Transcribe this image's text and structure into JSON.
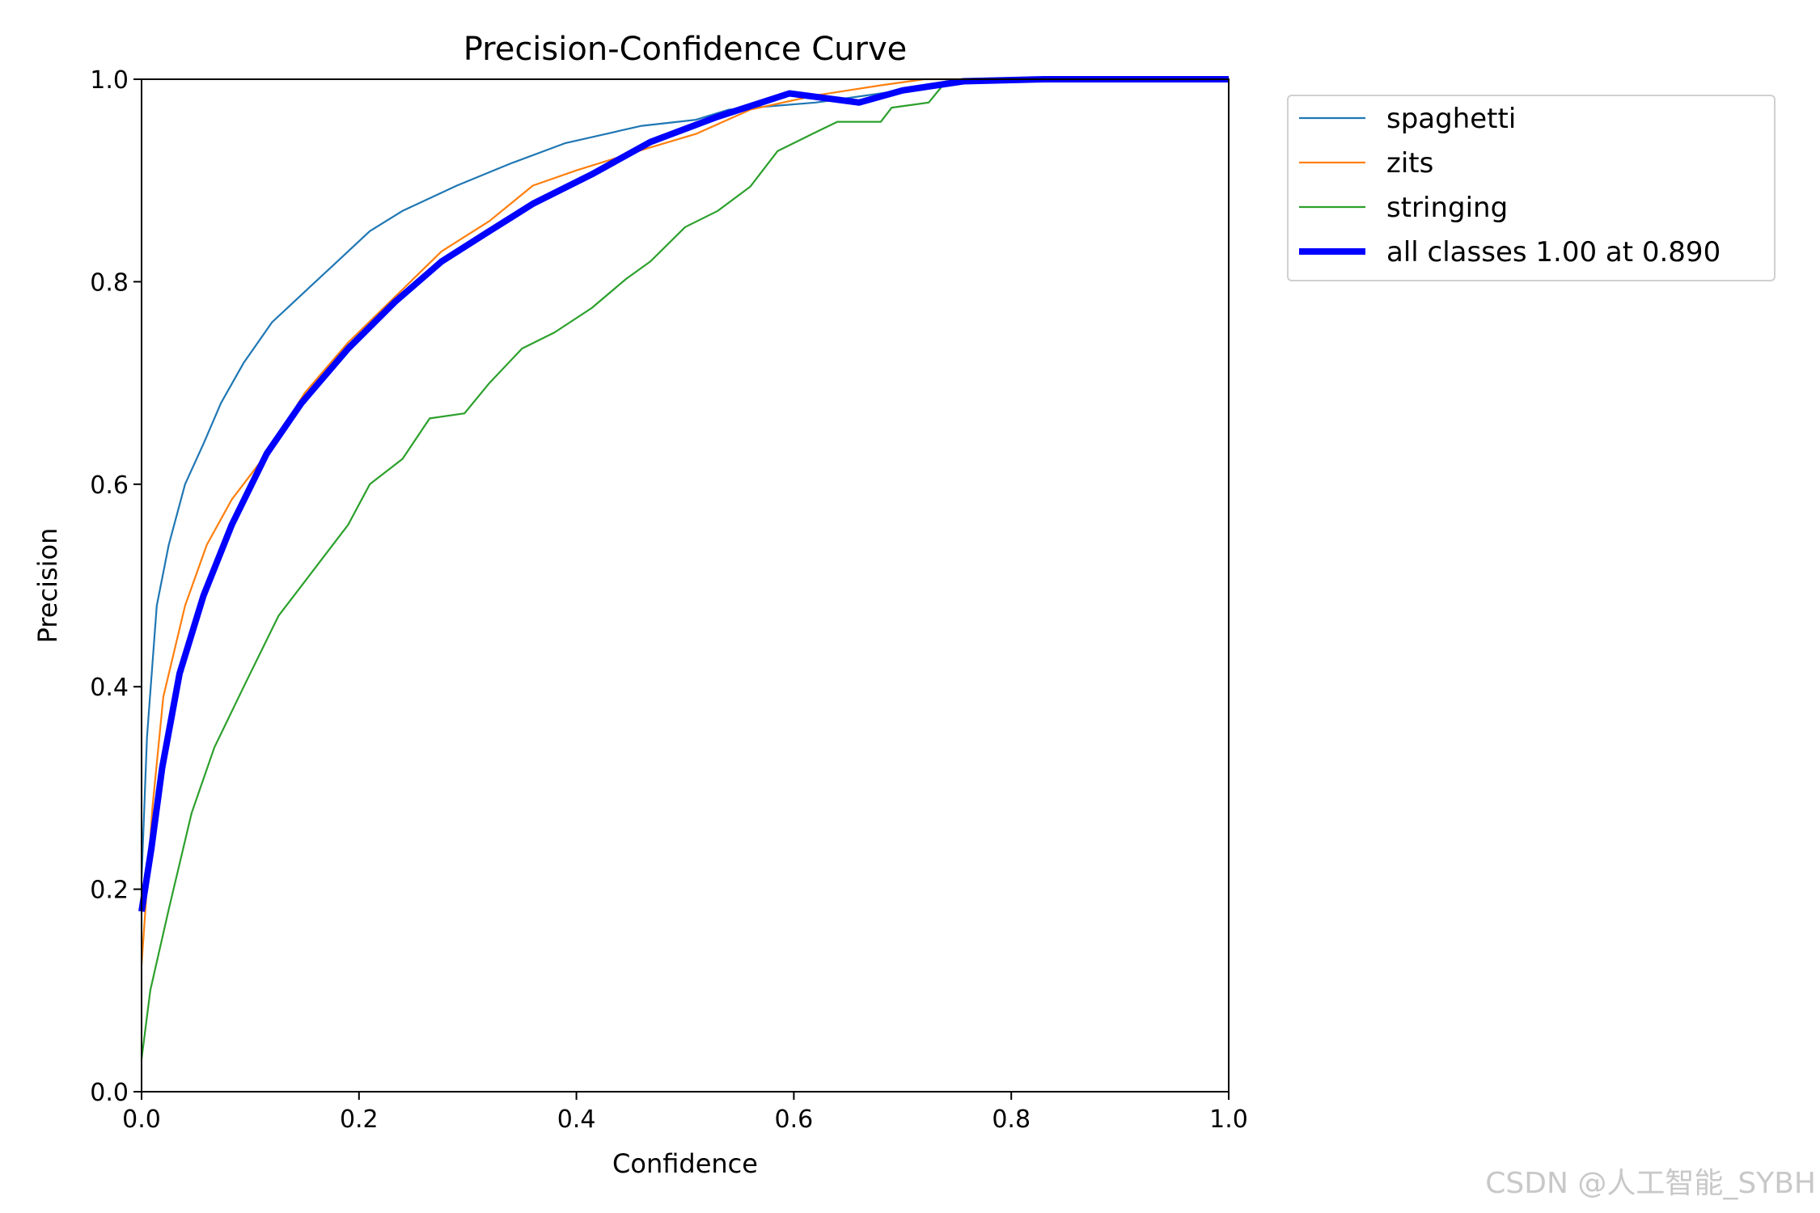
{
  "chart_data": {
    "type": "line",
    "title": "Precision-Confidence Curve",
    "xlabel": "Confidence",
    "ylabel": "Precision",
    "xlim": [
      0,
      1
    ],
    "ylim": [
      0,
      1
    ],
    "xticks": [
      "0.0",
      "0.2",
      "0.4",
      "0.6",
      "0.8",
      "1.0"
    ],
    "yticks": [
      "0.0",
      "0.2",
      "0.4",
      "0.6",
      "0.8",
      "1.0"
    ],
    "grid": false,
    "legend_position": "outside-top-right",
    "series": [
      {
        "name": "spaghetti",
        "color": "#1f77b4",
        "width": "thin",
        "points": [
          [
            0,
            0.21
          ],
          [
            0.005,
            0.35
          ],
          [
            0.014,
            0.48
          ],
          [
            0.025,
            0.54
          ],
          [
            0.04,
            0.6
          ],
          [
            0.057,
            0.64
          ],
          [
            0.073,
            0.68
          ],
          [
            0.094,
            0.72
          ],
          [
            0.12,
            0.76
          ],
          [
            0.15,
            0.79
          ],
          [
            0.18,
            0.82
          ],
          [
            0.21,
            0.85
          ],
          [
            0.24,
            0.87
          ],
          [
            0.29,
            0.895
          ],
          [
            0.34,
            0.917
          ],
          [
            0.39,
            0.937
          ],
          [
            0.46,
            0.954
          ],
          [
            0.51,
            0.96
          ],
          [
            0.54,
            0.97
          ],
          [
            0.62,
            0.977
          ],
          [
            0.68,
            0.986
          ],
          [
            0.75,
            0.998
          ],
          [
            1.0,
            1.0
          ]
        ]
      },
      {
        "name": "zits",
        "color": "#ff7f0e",
        "width": "thin",
        "points": [
          [
            0,
            0.125
          ],
          [
            0.01,
            0.28
          ],
          [
            0.02,
            0.39
          ],
          [
            0.04,
            0.48
          ],
          [
            0.06,
            0.54
          ],
          [
            0.083,
            0.585
          ],
          [
            0.115,
            0.63
          ],
          [
            0.15,
            0.69
          ],
          [
            0.19,
            0.74
          ],
          [
            0.233,
            0.785
          ],
          [
            0.276,
            0.83
          ],
          [
            0.32,
            0.86
          ],
          [
            0.36,
            0.895
          ],
          [
            0.4,
            0.91
          ],
          [
            0.46,
            0.93
          ],
          [
            0.51,
            0.946
          ],
          [
            0.56,
            0.97
          ],
          [
            0.62,
            0.984
          ],
          [
            0.68,
            0.994
          ],
          [
            0.72,
            1.0
          ],
          [
            1.0,
            1.0
          ]
        ]
      },
      {
        "name": "stringing",
        "color": "#2ca02c",
        "width": "thin",
        "points": [
          [
            0,
            0.032
          ],
          [
            0.008,
            0.1
          ],
          [
            0.025,
            0.18
          ],
          [
            0.046,
            0.275
          ],
          [
            0.067,
            0.34
          ],
          [
            0.094,
            0.4
          ],
          [
            0.126,
            0.47
          ],
          [
            0.158,
            0.515
          ],
          [
            0.19,
            0.56
          ],
          [
            0.21,
            0.6
          ],
          [
            0.24,
            0.625
          ],
          [
            0.265,
            0.665
          ],
          [
            0.297,
            0.67
          ],
          [
            0.32,
            0.7
          ],
          [
            0.35,
            0.734
          ],
          [
            0.38,
            0.75
          ],
          [
            0.414,
            0.774
          ],
          [
            0.446,
            0.803
          ],
          [
            0.468,
            0.82
          ],
          [
            0.5,
            0.854
          ],
          [
            0.53,
            0.87
          ],
          [
            0.56,
            0.894
          ],
          [
            0.585,
            0.929
          ],
          [
            0.617,
            0.946
          ],
          [
            0.64,
            0.958
          ],
          [
            0.68,
            0.958
          ],
          [
            0.69,
            0.972
          ],
          [
            0.724,
            0.977
          ],
          [
            0.74,
            0.998
          ],
          [
            1.0,
            1.0
          ]
        ]
      },
      {
        "name": "all classes 1.00 at 0.890",
        "color": "#0000ff",
        "width": "thick",
        "points": [
          [
            0,
            0.178
          ],
          [
            0.009,
            0.24
          ],
          [
            0.019,
            0.32
          ],
          [
            0.035,
            0.413
          ],
          [
            0.057,
            0.49
          ],
          [
            0.083,
            0.56
          ],
          [
            0.115,
            0.63
          ],
          [
            0.147,
            0.68
          ],
          [
            0.19,
            0.734
          ],
          [
            0.233,
            0.78
          ],
          [
            0.276,
            0.82
          ],
          [
            0.32,
            0.85
          ],
          [
            0.36,
            0.877
          ],
          [
            0.414,
            0.906
          ],
          [
            0.468,
            0.938
          ],
          [
            0.53,
            0.963
          ],
          [
            0.596,
            0.986
          ],
          [
            0.66,
            0.977
          ],
          [
            0.7,
            0.989
          ],
          [
            0.756,
            0.998
          ],
          [
            0.83,
            1.0
          ],
          [
            1.0,
            1.0
          ]
        ]
      }
    ]
  },
  "watermark": "CSDN @人工智能_SYBH"
}
